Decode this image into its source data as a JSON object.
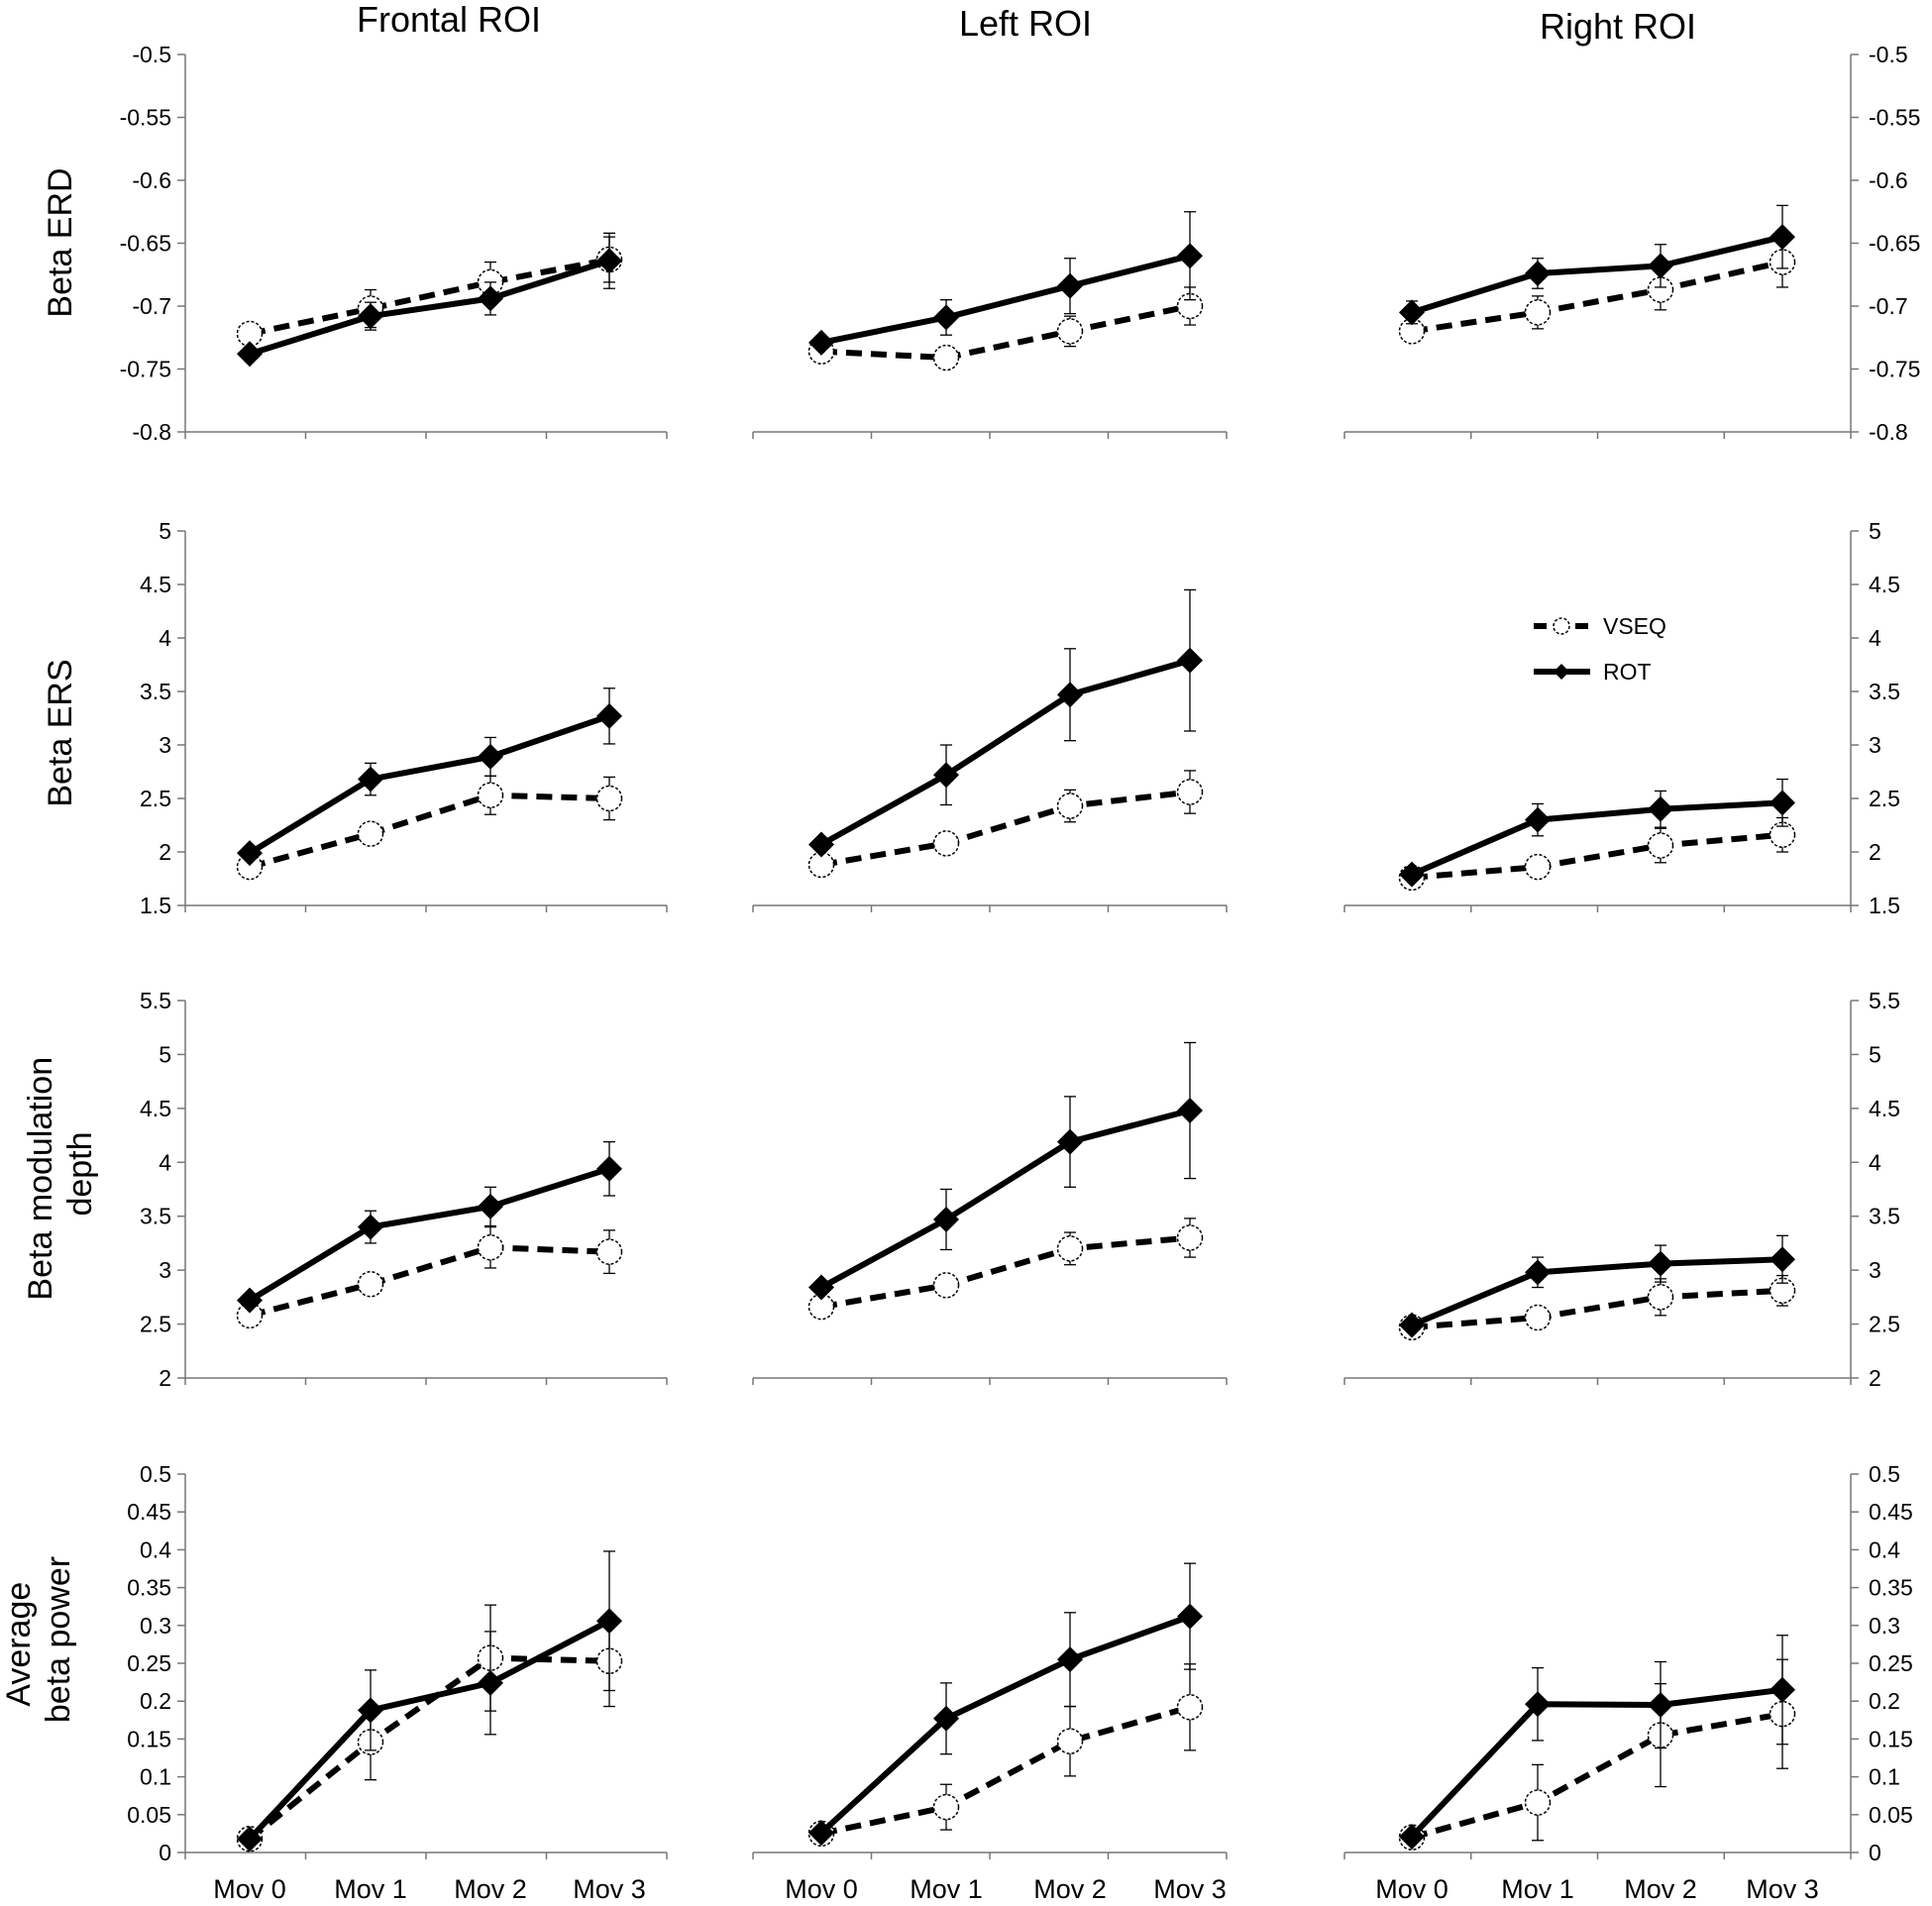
{
  "figure": {
    "column_titles": [
      "Frontal ROI",
      "Left ROI",
      "Right ROI"
    ],
    "row_labels": [
      [
        "Beta ERD"
      ],
      [
        "Beta ERS"
      ],
      [
        "Beta modulation",
        "depth"
      ],
      [
        "Average",
        "beta power"
      ]
    ],
    "x_categories": [
      "Mov 0",
      "Mov  1",
      "Mov 2",
      "Mov  3"
    ],
    "legend": [
      {
        "name": "VSEQ",
        "style": "dashed",
        "marker": "circle-open"
      },
      {
        "name": "ROT",
        "style": "solid",
        "marker": "diamond-filled"
      }
    ]
  },
  "chart_data": [
    {
      "type": "line",
      "id": "erd-frontal",
      "row": 0,
      "col": 0,
      "title": "Frontal ROI",
      "ylabel": "Beta ERD",
      "ylim": [
        -0.8,
        -0.5
      ],
      "yticks": [
        "-0.5",
        "-0.55",
        "-0.6",
        "-0.65",
        "-0.7",
        "-0.75",
        "-0.8"
      ],
      "left_axis": true,
      "right_axis": false,
      "categories": [
        "Mov 0",
        "Mov  1",
        "Mov 2",
        "Mov  3"
      ],
      "series": [
        {
          "name": "VSEQ",
          "values": [
            -0.722,
            -0.702,
            -0.681,
            -0.663
          ],
          "err": [
            0.004,
            0.015,
            0.016,
            0.018
          ]
        },
        {
          "name": "ROT",
          "values": [
            -0.738,
            -0.708,
            -0.694,
            -0.664
          ],
          "err": [
            0.004,
            0.011,
            0.013,
            0.022
          ]
        }
      ]
    },
    {
      "type": "line",
      "id": "erd-left",
      "row": 0,
      "col": 1,
      "title": "Left ROI",
      "ylabel": "Beta ERD",
      "ylim": [
        -0.8,
        -0.5
      ],
      "yticks": [
        "-0.5",
        "-0.55",
        "-0.6",
        "-0.65",
        "-0.7",
        "-0.75",
        "-0.8"
      ],
      "left_axis": false,
      "right_axis": false,
      "categories": [
        "Mov 0",
        "Mov  1",
        "Mov 2",
        "Mov  3"
      ],
      "series": [
        {
          "name": "VSEQ",
          "values": [
            -0.736,
            -0.741,
            -0.72,
            -0.7
          ],
          "err": [
            0.004,
            0.005,
            0.012,
            0.015
          ]
        },
        {
          "name": "ROT",
          "values": [
            -0.729,
            -0.709,
            -0.684,
            -0.66
          ],
          "err": [
            0.004,
            0.014,
            0.022,
            0.035
          ]
        }
      ]
    },
    {
      "type": "line",
      "id": "erd-right",
      "row": 0,
      "col": 2,
      "title": "Right ROI",
      "ylabel": "Beta ERD",
      "ylim": [
        -0.8,
        -0.5
      ],
      "yticks": [
        "-0.5",
        "-0.55",
        "-0.6",
        "-0.65",
        "-0.7",
        "-0.75",
        "-0.8"
      ],
      "left_axis": false,
      "right_axis": true,
      "categories": [
        "Mov 0",
        "Mov  1",
        "Mov 2",
        "Mov  3"
      ],
      "series": [
        {
          "name": "VSEQ",
          "values": [
            -0.72,
            -0.705,
            -0.687,
            -0.665
          ],
          "err": [
            0.004,
            0.013,
            0.016,
            0.02
          ]
        },
        {
          "name": "ROT",
          "values": [
            -0.705,
            -0.674,
            -0.668,
            -0.645
          ],
          "err": [
            0.009,
            0.012,
            0.017,
            0.025
          ]
        }
      ]
    },
    {
      "type": "line",
      "id": "ers-frontal",
      "row": 1,
      "col": 0,
      "title": "Frontal ROI",
      "ylabel": "Beta ERS",
      "ylim": [
        1.5,
        5
      ],
      "yticks": [
        "5",
        "4.5",
        "4",
        "3.5",
        "3",
        "2.5",
        "2",
        "1.5"
      ],
      "left_axis": true,
      "right_axis": false,
      "categories": [
        "Mov 0",
        "Mov  1",
        "Mov 2",
        "Mov  3"
      ],
      "series": [
        {
          "name": "VSEQ",
          "values": [
            1.86,
            2.17,
            2.53,
            2.5
          ],
          "err": [
            0.03,
            0.1,
            0.18,
            0.2
          ]
        },
        {
          "name": "ROT",
          "values": [
            1.99,
            2.68,
            2.89,
            3.27
          ],
          "err": [
            0.03,
            0.15,
            0.18,
            0.26
          ]
        }
      ]
    },
    {
      "type": "line",
      "id": "ers-left",
      "row": 1,
      "col": 1,
      "title": "Left ROI",
      "ylabel": "Beta ERS",
      "ylim": [
        1.5,
        5
      ],
      "yticks": [
        "5",
        "4.5",
        "4",
        "3.5",
        "3",
        "2.5",
        "2",
        "1.5"
      ],
      "left_axis": false,
      "right_axis": false,
      "categories": [
        "Mov 0",
        "Mov  1",
        "Mov 2",
        "Mov  3"
      ],
      "series": [
        {
          "name": "VSEQ",
          "values": [
            1.88,
            2.08,
            2.43,
            2.56
          ],
          "err": [
            0.03,
            0.06,
            0.15,
            0.2
          ]
        },
        {
          "name": "ROT",
          "values": [
            2.07,
            2.72,
            3.47,
            3.79
          ],
          "err": [
            0.04,
            0.28,
            0.43,
            0.66
          ]
        }
      ]
    },
    {
      "type": "line",
      "id": "ers-right",
      "row": 1,
      "col": 2,
      "title": "Right ROI",
      "ylabel": "Beta ERS",
      "ylim": [
        1.5,
        5
      ],
      "yticks": [
        "5",
        "4.5",
        "4",
        "3.5",
        "3",
        "2.5",
        "2",
        "1.5"
      ],
      "left_axis": false,
      "right_axis": true,
      "categories": [
        "Mov 0",
        "Mov  1",
        "Mov 2",
        "Mov  3"
      ],
      "series": [
        {
          "name": "VSEQ",
          "values": [
            1.76,
            1.86,
            2.06,
            2.16
          ],
          "err": [
            0.02,
            0.05,
            0.16,
            0.16
          ]
        },
        {
          "name": "ROT",
          "values": [
            1.79,
            2.3,
            2.4,
            2.46
          ],
          "err": [
            0.03,
            0.15,
            0.17,
            0.22
          ]
        }
      ]
    },
    {
      "type": "line",
      "id": "md-frontal",
      "row": 2,
      "col": 0,
      "title": "Frontal ROI",
      "ylabel": "Beta modulation depth",
      "ylim": [
        2,
        5.5
      ],
      "yticks": [
        "5.5",
        "5",
        "4.5",
        "4",
        "3.5",
        "3",
        "2.5",
        "2"
      ],
      "left_axis": true,
      "right_axis": false,
      "categories": [
        "Mov 0",
        "Mov  1",
        "Mov 2",
        "Mov  3"
      ],
      "series": [
        {
          "name": "VSEQ",
          "values": [
            2.58,
            2.87,
            3.21,
            3.17
          ],
          "err": [
            0.03,
            0.06,
            0.19,
            0.2
          ]
        },
        {
          "name": "ROT",
          "values": [
            2.72,
            3.4,
            3.59,
            3.94
          ],
          "err": [
            0.03,
            0.15,
            0.18,
            0.25
          ]
        }
      ]
    },
    {
      "type": "line",
      "id": "md-left",
      "row": 2,
      "col": 1,
      "title": "Left ROI",
      "ylabel": "Beta modulation depth",
      "ylim": [
        2,
        5.5
      ],
      "yticks": [
        "5.5",
        "5",
        "4.5",
        "4",
        "3.5",
        "3",
        "2.5",
        "2"
      ],
      "left_axis": false,
      "right_axis": false,
      "categories": [
        "Mov 0",
        "Mov  1",
        "Mov 2",
        "Mov  3"
      ],
      "series": [
        {
          "name": "VSEQ",
          "values": [
            2.66,
            2.86,
            3.2,
            3.3
          ],
          "err": [
            0.02,
            0.05,
            0.15,
            0.18
          ]
        },
        {
          "name": "ROT",
          "values": [
            2.84,
            3.47,
            4.19,
            4.48
          ],
          "err": [
            0.03,
            0.28,
            0.42,
            0.63
          ]
        }
      ]
    },
    {
      "type": "line",
      "id": "md-right",
      "row": 2,
      "col": 2,
      "title": "Right ROI",
      "ylabel": "Beta modulation depth",
      "ylim": [
        2,
        5.5
      ],
      "yticks": [
        "5.5",
        "5",
        "4.5",
        "4",
        "3.5",
        "3",
        "2.5",
        "2"
      ],
      "left_axis": false,
      "right_axis": true,
      "categories": [
        "Mov 0",
        "Mov  1",
        "Mov 2",
        "Mov  3"
      ],
      "series": [
        {
          "name": "VSEQ",
          "values": [
            2.47,
            2.56,
            2.75,
            2.81
          ],
          "err": [
            0.02,
            0.05,
            0.17,
            0.14
          ]
        },
        {
          "name": "ROT",
          "values": [
            2.49,
            2.98,
            3.06,
            3.1
          ],
          "err": [
            0.03,
            0.14,
            0.17,
            0.22
          ]
        }
      ]
    },
    {
      "type": "line",
      "id": "avg-frontal",
      "row": 3,
      "col": 0,
      "title": "Frontal ROI",
      "ylabel": "Average beta power",
      "ylim": [
        0,
        0.5
      ],
      "yticks": [
        "0.5",
        "0.45",
        "0.4",
        "0.35",
        "0.3",
        "0.25",
        "0.2",
        "0.15",
        "0.1",
        "0.05",
        "0"
      ],
      "left_axis": true,
      "right_axis": false,
      "categories": [
        "Mov 0",
        "Mov  1",
        "Mov 2",
        "Mov  3"
      ],
      "series": [
        {
          "name": "VSEQ",
          "values": [
            0.018,
            0.146,
            0.257,
            0.253
          ],
          "err": [
            0.003,
            0.05,
            0.07,
            0.06
          ]
        },
        {
          "name": "ROT",
          "values": [
            0.018,
            0.188,
            0.224,
            0.306
          ],
          "err": [
            0.003,
            0.053,
            0.068,
            0.092
          ]
        }
      ]
    },
    {
      "type": "line",
      "id": "avg-left",
      "row": 3,
      "col": 1,
      "title": "Left ROI",
      "ylabel": "Average beta power",
      "ylim": [
        0,
        0.5
      ],
      "yticks": [
        "0.5",
        "0.45",
        "0.4",
        "0.35",
        "0.3",
        "0.25",
        "0.2",
        "0.15",
        "0.1",
        "0.05",
        "0"
      ],
      "left_axis": false,
      "right_axis": false,
      "categories": [
        "Mov 0",
        "Mov  1",
        "Mov 2",
        "Mov  3"
      ],
      "series": [
        {
          "name": "VSEQ",
          "values": [
            0.025,
            0.06,
            0.147,
            0.192
          ],
          "err": [
            0.003,
            0.03,
            0.046,
            0.057
          ]
        },
        {
          "name": "ROT",
          "values": [
            0.026,
            0.177,
            0.255,
            0.312
          ],
          "err": [
            0.003,
            0.047,
            0.062,
            0.07
          ]
        }
      ]
    },
    {
      "type": "line",
      "id": "avg-right",
      "row": 3,
      "col": 2,
      "title": "Right ROI",
      "ylabel": "Average beta power",
      "ylim": [
        0,
        0.5
      ],
      "yticks": [
        "0.5",
        "0.45",
        "0.4",
        "0.35",
        "0.3",
        "0.25",
        "0.2",
        "0.15",
        "0.1",
        "0.05",
        "0"
      ],
      "left_axis": false,
      "right_axis": true,
      "categories": [
        "Mov 0",
        "Mov  1",
        "Mov 2",
        "Mov  3"
      ],
      "series": [
        {
          "name": "VSEQ",
          "values": [
            0.02,
            0.066,
            0.155,
            0.183
          ],
          "err": [
            0.003,
            0.05,
            0.068,
            0.072
          ]
        },
        {
          "name": "ROT",
          "values": [
            0.021,
            0.196,
            0.195,
            0.215
          ],
          "err": [
            0.003,
            0.048,
            0.057,
            0.072
          ]
        }
      ]
    }
  ]
}
